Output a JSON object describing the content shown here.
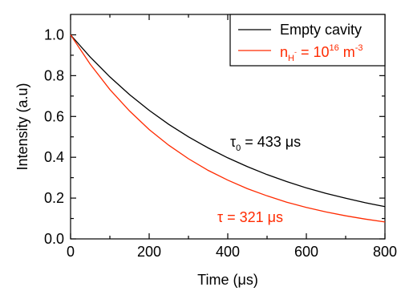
{
  "chart_data": {
    "type": "line",
    "xlabel": "Time (μs)",
    "ylabel": "Intensity (a.u)",
    "xlim": [
      0,
      800
    ],
    "ylim": [
      0.0,
      1.1
    ],
    "x_ticks": [
      0,
      200,
      400,
      600,
      800
    ],
    "y_ticks": [
      0.0,
      0.2,
      0.4,
      0.6,
      0.8,
      1.0
    ],
    "x_tick_labels": [
      "0",
      "200",
      "400",
      "600",
      "800"
    ],
    "y_tick_labels": [
      "0.0",
      "0.2",
      "0.4",
      "0.6",
      "0.8",
      "1.0"
    ],
    "grid": false,
    "legend_position": "top-right",
    "series": [
      {
        "name": "Empty cavity",
        "color": "#000000",
        "tau_us": 433,
        "x": [
          0,
          50,
          100,
          150,
          200,
          250,
          300,
          350,
          400,
          450,
          500,
          550,
          600,
          650,
          700,
          750,
          800
        ],
        "y": [
          1.0,
          0.891,
          0.794,
          0.707,
          0.63,
          0.561,
          0.5,
          0.446,
          0.397,
          0.354,
          0.315,
          0.281,
          0.25,
          0.223,
          0.199,
          0.177,
          0.158
        ]
      },
      {
        "name": "n_H- = 10^16 m^-3",
        "color": "#ff2a00",
        "tau_us": 321,
        "x": [
          0,
          50,
          100,
          150,
          200,
          250,
          300,
          350,
          400,
          450,
          500,
          550,
          600,
          650,
          700,
          750,
          800
        ],
        "y": [
          1.0,
          0.856,
          0.732,
          0.627,
          0.536,
          0.459,
          0.393,
          0.336,
          0.288,
          0.246,
          0.211,
          0.18,
          0.154,
          0.132,
          0.113,
          0.097,
          0.083
        ]
      }
    ],
    "legend": {
      "entry1": "Empty cavity",
      "entry2_prefix": "n",
      "entry2_sub": "H",
      "entry2_sup_minus": "-",
      "entry2_eq": " = 10",
      "entry2_exp": "16",
      "entry2_unit": " m",
      "entry2_unit_exp": "-3"
    },
    "annotations": {
      "tau0_symbol": "τ",
      "tau0_sub": "0",
      "tau0_text": " = 433 μs",
      "tau_text": "τ = 321 μs"
    }
  }
}
